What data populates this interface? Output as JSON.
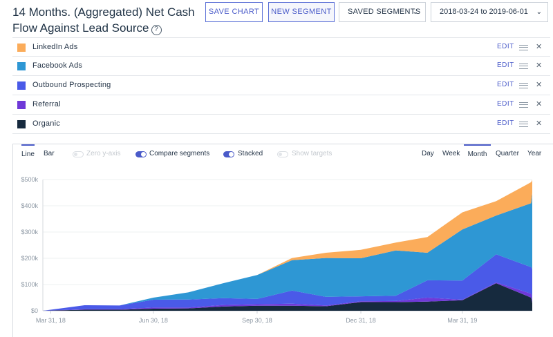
{
  "header": {
    "title": "14 Months. (Aggregated) Net Cash Flow Against Lead Source",
    "help_icon": "question-circle-icon",
    "save_chart": "SAVE CHART",
    "new_segment": "NEW SEGMENT",
    "saved_segments": "SAVED SEGMENTS",
    "date_range": "2018-03-24 to 2019-06-01"
  },
  "segments": [
    {
      "label": "LinkedIn Ads",
      "color": "#fbac5a",
      "edit": "EDIT"
    },
    {
      "label": "Facebook Ads",
      "color": "#2e97d4",
      "edit": "EDIT"
    },
    {
      "label": "Outbound Prospecting",
      "color": "#4a5ae8",
      "edit": "EDIT"
    },
    {
      "label": "Referral",
      "color": "#6f39d8",
      "edit": "EDIT"
    },
    {
      "label": "Organic",
      "color": "#162a3e",
      "edit": "EDIT"
    }
  ],
  "toolbar": {
    "line": "Line",
    "bar": "Bar",
    "zero_y_axis": "Zero y-axis",
    "compare_segments": "Compare segments",
    "stacked": "Stacked",
    "show_targets": "Show targets",
    "day": "Day",
    "week": "Week",
    "month": "Month",
    "quarter": "Quarter",
    "year": "Year"
  },
  "chart_data": {
    "type": "area",
    "stacked": true,
    "y_ticks": [
      "$0",
      "$100k",
      "$200k",
      "$300k",
      "$400k",
      "$500k"
    ],
    "ylim": [
      0,
      500000
    ],
    "x_ticks": [
      "Mar 31, 18",
      "Jun 30, 18",
      "Sep 30, 18",
      "Dec 31, 18",
      "Mar 31, 19"
    ],
    "x": [
      "2018-03-24",
      "2018-04-30",
      "2018-05-31",
      "2018-06-30",
      "2018-07-31",
      "2018-08-31",
      "2018-09-30",
      "2018-10-31",
      "2018-11-30",
      "2018-12-31",
      "2019-01-31",
      "2019-02-28",
      "2019-03-31",
      "2019-04-30",
      "2019-05-31",
      "2019-06-01"
    ],
    "series": [
      {
        "name": "Organic",
        "color": "#162a3e",
        "values": [
          0,
          4000,
          4000,
          8000,
          9000,
          16000,
          19000,
          19000,
          17000,
          33000,
          33000,
          35000,
          40000,
          105000,
          50000,
          30000
        ]
      },
      {
        "name": "Referral",
        "color": "#6f39d8",
        "values": [
          0,
          2000,
          2000,
          4000,
          3000,
          6000,
          6000,
          8000,
          3000,
          3000,
          4000,
          15000,
          2000,
          3000,
          15000,
          12000
        ]
      },
      {
        "name": "Outbound Prospecting",
        "color": "#4a5ae8",
        "values": [
          0,
          15000,
          14000,
          30000,
          31000,
          26000,
          20000,
          50000,
          33000,
          19000,
          20000,
          66000,
          73000,
          107000,
          101000,
          117000
        ]
      },
      {
        "name": "Facebook Ads",
        "color": "#2e97d4",
        "values": [
          0,
          0,
          0,
          8000,
          27000,
          57000,
          91000,
          116000,
          148000,
          145000,
          173000,
          105000,
          195000,
          148000,
          244000,
          290000
        ]
      },
      {
        "name": "LinkedIn Ads",
        "color": "#fbac5a",
        "values": [
          0,
          0,
          0,
          0,
          0,
          0,
          0,
          8000,
          20000,
          32000,
          30000,
          60000,
          65000,
          55000,
          80000,
          50000
        ]
      }
    ]
  }
}
